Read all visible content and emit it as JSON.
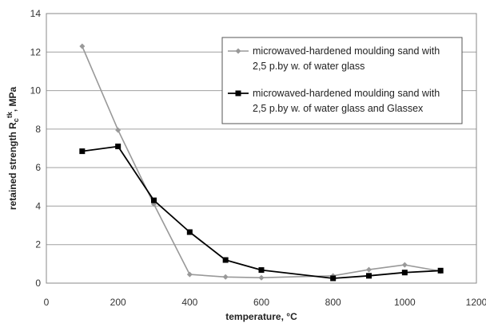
{
  "chart_data": {
    "type": "line",
    "xlabel": "temperature, °C",
    "ylabel_prefix": "retained strength R",
    "ylabel_sub": "c",
    "ylabel_sup": "tk",
    "ylabel_suffix": ", MPa",
    "xlim": [
      0,
      1200
    ],
    "ylim": [
      0,
      14
    ],
    "xticks": [
      0,
      200,
      400,
      600,
      800,
      1000,
      1200
    ],
    "yticks": [
      0,
      2,
      4,
      6,
      8,
      10,
      12,
      14
    ],
    "grid": "horizontal",
    "legend_position": "top-right",
    "series": [
      {
        "name_line1": "microwaved-hardened moulding sand with",
        "name_line2": "2,5 p.by w. of water glass",
        "color": "#999999",
        "marker": "diamond",
        "x": [
          100,
          200,
          300,
          400,
          500,
          600,
          800,
          900,
          1000,
          1100
        ],
        "y": [
          12.3,
          7.95,
          4.1,
          0.45,
          0.32,
          0.28,
          0.38,
          0.7,
          0.95,
          0.62
        ]
      },
      {
        "name_line1": "microwaved-hardened moulding sand with",
        "name_line2": "2,5 p.by w. of water glass and Glassex",
        "color": "#000000",
        "marker": "square",
        "x": [
          100,
          200,
          300,
          400,
          500,
          600,
          800,
          900,
          1000,
          1100
        ],
        "y": [
          6.85,
          7.1,
          4.3,
          2.65,
          1.2,
          0.68,
          0.25,
          0.38,
          0.55,
          0.65
        ]
      }
    ]
  }
}
